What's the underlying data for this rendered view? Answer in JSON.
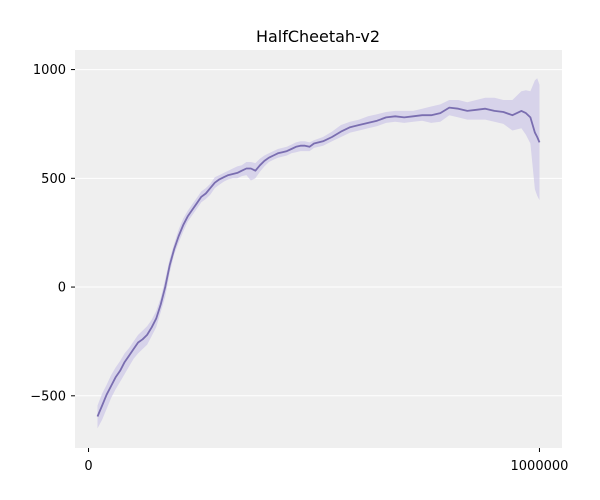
{
  "chart_data": {
    "type": "line",
    "title": "HalfCheetah-v2",
    "xlabel": "",
    "ylabel": "",
    "xlim": [
      -30000,
      1050000
    ],
    "ylim": [
      -740,
      1090
    ],
    "x_ticks": [
      0,
      1000000
    ],
    "x_tick_labels": [
      "0",
      "1000000"
    ],
    "y_ticks": [
      -500,
      0,
      500,
      1000
    ],
    "y_tick_labels": [
      "−500",
      "0",
      "500",
      "1000"
    ],
    "grid": true,
    "legend": "none",
    "colors": {
      "line": "#7a6eb0",
      "band": "#c9c3e6",
      "plot_bg": "#efefef",
      "grid": "#ffffff"
    },
    "series": [
      {
        "x": [
          20000,
          30000,
          40000,
          50000,
          60000,
          70000,
          80000,
          90000,
          100000,
          110000,
          120000,
          130000,
          140000,
          150000,
          160000,
          170000,
          180000,
          190000,
          200000,
          210000,
          220000,
          230000,
          240000,
          250000,
          260000,
          270000,
          280000,
          290000,
          300000,
          310000,
          320000,
          330000,
          340000,
          350000,
          360000,
          370000,
          380000,
          390000,
          400000,
          410000,
          420000,
          430000,
          440000,
          450000,
          460000,
          470000,
          480000,
          490000,
          500000,
          520000,
          540000,
          560000,
          580000,
          600000,
          620000,
          640000,
          660000,
          680000,
          700000,
          720000,
          740000,
          760000,
          780000,
          800000,
          820000,
          840000,
          860000,
          880000,
          900000,
          920000,
          940000,
          960000,
          970000,
          980000,
          990000,
          995000,
          1000000
        ],
        "values": [
          -595,
          -545,
          -495,
          -455,
          -415,
          -385,
          -345,
          -315,
          -285,
          -255,
          -240,
          -220,
          -185,
          -145,
          -80,
          0,
          100,
          175,
          235,
          285,
          325,
          355,
          385,
          415,
          430,
          455,
          480,
          495,
          505,
          515,
          520,
          525,
          535,
          545,
          545,
          535,
          560,
          580,
          595,
          605,
          615,
          620,
          625,
          635,
          645,
          650,
          650,
          645,
          660,
          670,
          690,
          715,
          735,
          745,
          755,
          765,
          780,
          785,
          780,
          785,
          790,
          790,
          800,
          825,
          820,
          810,
          815,
          820,
          810,
          805,
          790,
          810,
          800,
          780,
          710,
          690,
          665
        ],
        "upper": [
          -545,
          -490,
          -450,
          -405,
          -370,
          -340,
          -305,
          -280,
          -250,
          -220,
          -200,
          -180,
          -150,
          -110,
          -50,
          35,
          130,
          200,
          265,
          315,
          350,
          380,
          410,
          440,
          455,
          475,
          505,
          515,
          525,
          535,
          545,
          555,
          560,
          575,
          575,
          570,
          590,
          605,
          615,
          625,
          635,
          640,
          645,
          655,
          665,
          670,
          670,
          665,
          675,
          690,
          715,
          745,
          760,
          770,
          785,
          795,
          805,
          810,
          810,
          810,
          820,
          830,
          840,
          860,
          860,
          850,
          860,
          870,
          870,
          860,
          860,
          900,
          905,
          900,
          950,
          960,
          930
        ],
        "lower": [
          -650,
          -610,
          -560,
          -510,
          -470,
          -435,
          -400,
          -365,
          -330,
          -305,
          -285,
          -265,
          -225,
          -185,
          -115,
          -45,
          65,
          150,
          205,
          255,
          300,
          330,
          360,
          390,
          405,
          425,
          455,
          470,
          485,
          495,
          500,
          500,
          510,
          515,
          490,
          500,
          530,
          555,
          575,
          585,
          595,
          600,
          605,
          615,
          620,
          625,
          625,
          625,
          640,
          650,
          670,
          690,
          710,
          720,
          730,
          740,
          755,
          760,
          755,
          760,
          765,
          755,
          760,
          790,
          780,
          770,
          770,
          770,
          760,
          750,
          720,
          730,
          700,
          660,
          450,
          420,
          400
        ]
      }
    ]
  }
}
